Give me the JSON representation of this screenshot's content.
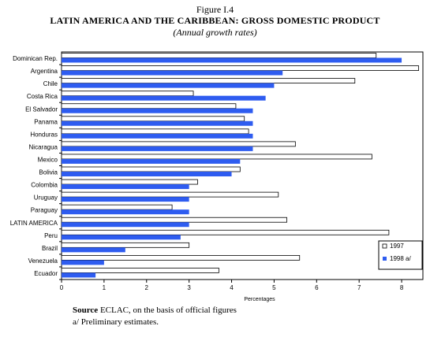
{
  "figure": {
    "label": "Figure I.4",
    "title": "LATIN AMERICA AND THE CARIBBEAN: GROSS DOMESTIC PRODUCT",
    "subtitle": "(Annual growth rates)"
  },
  "footer": {
    "source_label": "Source",
    "source_text": " ECLAC, on the basis of official figures",
    "note": "a/ Preliminary estimates."
  },
  "chart_data": {
    "type": "bar",
    "orientation": "horizontal",
    "categories": [
      "Dominican Rep.",
      "Argentina",
      "Chile",
      "Costa Rica",
      "El Salvador",
      "Panama",
      "Honduras",
      "Nicaragua",
      "Mexico",
      "Bolivia",
      "Colombia",
      "Uruguay",
      "Paraguay",
      "LATIN AMERICA",
      "Peru",
      "Brazil",
      "Venezuela",
      "Ecuador"
    ],
    "series": [
      {
        "name": "1997",
        "color": "#ffffff",
        "values": [
          7.4,
          8.4,
          6.9,
          3.1,
          4.1,
          4.3,
          4.4,
          5.5,
          7.3,
          4.2,
          3.2,
          5.1,
          2.6,
          5.3,
          7.7,
          3.0,
          5.6,
          3.7
        ]
      },
      {
        "name": "1998 a/",
        "color": "#2e5cf0",
        "values": [
          8.0,
          5.2,
          5.0,
          4.8,
          4.5,
          4.5,
          4.5,
          4.5,
          4.2,
          4.0,
          3.0,
          3.0,
          3.0,
          3.0,
          2.8,
          1.5,
          1.0,
          0.8
        ]
      }
    ],
    "xlabel": "Percentages",
    "xlim": [
      0,
      8.5
    ],
    "xticks": [
      0,
      1,
      2,
      3,
      4,
      5,
      6,
      7,
      8
    ],
    "grid": false,
    "legend_position": "bottom-right"
  }
}
